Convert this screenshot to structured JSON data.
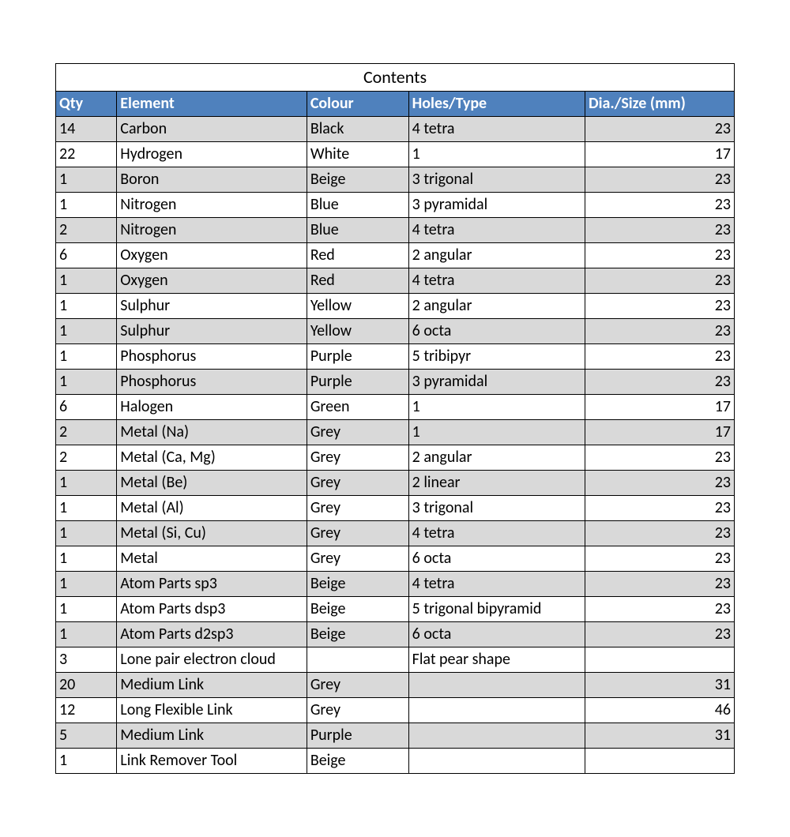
{
  "title": "Contents",
  "columns": [
    "Qty",
    "Element",
    "Colour",
    "Holes/Type",
    "Dia./Size (mm)"
  ],
  "col_align": [
    "left",
    "left",
    "left",
    "left",
    "right"
  ],
  "header_bg": "#4f81bd",
  "header_fg": "#ffffff",
  "row_odd_bg": "#d9d9d9",
  "row_even_bg": "#ffffff",
  "border_color": "#000000",
  "font_family": "Calibri",
  "base_fontsize_pt": 15,
  "rows": [
    {
      "qty": "14",
      "element": "Carbon",
      "colour": "Black",
      "holes": "4 tetra",
      "size": "23"
    },
    {
      "qty": "22",
      "element": "Hydrogen",
      "colour": "White",
      "holes": "1",
      "size": "17"
    },
    {
      "qty": "1",
      "element": "Boron",
      "colour": "Beige",
      "holes": "3 trigonal",
      "size": "23"
    },
    {
      "qty": "1",
      "element": "Nitrogen",
      "colour": "Blue",
      "holes": "3 pyramidal",
      "size": "23"
    },
    {
      "qty": "2",
      "element": "Nitrogen",
      "colour": "Blue",
      "holes": "4 tetra",
      "size": "23"
    },
    {
      "qty": "6",
      "element": "Oxygen",
      "colour": "Red",
      "holes": "2 angular",
      "size": "23"
    },
    {
      "qty": "1",
      "element": "Oxygen",
      "colour": "Red",
      "holes": "4 tetra",
      "size": "23"
    },
    {
      "qty": "1",
      "element": "Sulphur",
      "colour": "Yellow",
      "holes": "2 angular",
      "size": "23"
    },
    {
      "qty": "1",
      "element": "Sulphur",
      "colour": "Yellow",
      "holes": "6 octa",
      "size": "23"
    },
    {
      "qty": "1",
      "element": "Phosphorus",
      "colour": "Purple",
      "holes": "5 tribipyr",
      "size": "23"
    },
    {
      "qty": "1",
      "element": "Phosphorus",
      "colour": "Purple",
      "holes": "3 pyramidal",
      "size": "23"
    },
    {
      "qty": "6",
      "element": "Halogen",
      "colour": "Green",
      "holes": "1",
      "size": "17"
    },
    {
      "qty": "2",
      "element": "Metal (Na)",
      "colour": "Grey",
      "holes": "1",
      "size": "17"
    },
    {
      "qty": "2",
      "element": "Metal (Ca, Mg)",
      "colour": "Grey",
      "holes": "2 angular",
      "size": "23"
    },
    {
      "qty": "1",
      "element": "Metal (Be)",
      "colour": "Grey",
      "holes": "2 linear",
      "size": "23"
    },
    {
      "qty": "1",
      "element": "Metal (Al)",
      "colour": "Grey",
      "holes": "3 trigonal",
      "size": "23"
    },
    {
      "qty": "1",
      "element": "Metal (Si, Cu)",
      "colour": "Grey",
      "holes": "4 tetra",
      "size": "23"
    },
    {
      "qty": "1",
      "element": "Metal",
      "colour": "Grey",
      "holes": "6 octa",
      "size": "23"
    },
    {
      "qty": "1",
      "element": "Atom Parts sp3",
      "colour": "Beige",
      "holes": "4 tetra",
      "size": "23"
    },
    {
      "qty": "1",
      "element": "Atom Parts dsp3",
      "colour": "Beige",
      "holes": "5 trigonal bipyramid",
      "size": "23"
    },
    {
      "qty": "1",
      "element": "Atom Parts d2sp3",
      "colour": "Beige",
      "holes": "6 octa",
      "size": "23"
    },
    {
      "qty": "3",
      "element": "Lone pair electron cloud",
      "colour": "",
      "holes": "Flat pear shape",
      "size": ""
    },
    {
      "qty": "20",
      "element": "Medium Link",
      "colour": "Grey",
      "holes": "",
      "size": "31"
    },
    {
      "qty": "12",
      "element": "Long Flexible Link",
      "colour": "Grey",
      "holes": "",
      "size": "46"
    },
    {
      "qty": "5",
      "element": "Medium Link",
      "colour": "Purple",
      "holes": "",
      "size": "31"
    },
    {
      "qty": "1",
      "element": "Link Remover Tool",
      "colour": "Beige",
      "holes": "",
      "size": ""
    }
  ]
}
